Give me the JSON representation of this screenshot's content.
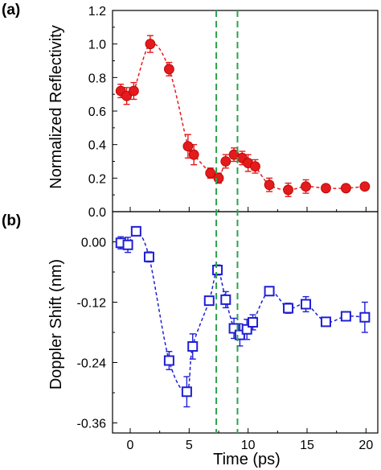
{
  "chart_data": [
    {
      "panel_label": "(a)",
      "type": "line",
      "xlabel": "",
      "ylabel": "Normalized Reflectivity",
      "xlim": [
        -1.5,
        21
      ],
      "ylim": [
        0.0,
        1.2
      ],
      "yticks": [
        "0.0",
        "0.2",
        "0.4",
        "0.6",
        "0.8",
        "1.0",
        "1.2"
      ],
      "marker": "filled-circle",
      "color": "#e41a1c",
      "series": [
        {
          "x": [
            -0.8,
            -0.3,
            0.3,
            1.7,
            3.3,
            4.9,
            5.4,
            6.8,
            7.5,
            8.1,
            8.8,
            9.5,
            10.0,
            10.6,
            11.8,
            13.4,
            14.9,
            16.6,
            18.3,
            19.9
          ],
          "y": [
            0.72,
            0.69,
            0.72,
            1.0,
            0.85,
            0.39,
            0.34,
            0.23,
            0.2,
            0.3,
            0.34,
            0.32,
            0.29,
            0.27,
            0.16,
            0.13,
            0.15,
            0.14,
            0.14,
            0.15
          ],
          "err": [
            0.04,
            0.05,
            0.05,
            0.05,
            0.04,
            0.07,
            0.06,
            0.03,
            0.03,
            0.04,
            0.04,
            0.04,
            0.05,
            0.04,
            0.04,
            0.04,
            0.04,
            0.01,
            0.01,
            0.01
          ]
        }
      ]
    },
    {
      "panel_label": "(b)",
      "type": "line",
      "xlabel": "Time (ps)",
      "ylabel": "Doppler Shift (nm)",
      "xlim": [
        -1.5,
        21
      ],
      "ylim": [
        -0.38,
        0.06
      ],
      "yticks": [
        "0.00",
        "-0.12",
        "-0.24",
        "-0.36"
      ],
      "ytick_values": [
        0.0,
        -0.12,
        -0.24,
        -0.36
      ],
      "xticks": [
        "0",
        "5",
        "10",
        "15",
        "20"
      ],
      "xtick_values": [
        0,
        5,
        10,
        15,
        20
      ],
      "marker": "open-square",
      "color": "#1f1fd6",
      "series": [
        {
          "x": [
            -0.8,
            -0.2,
            0.5,
            1.6,
            3.3,
            4.8,
            5.3,
            6.7,
            7.4,
            8.1,
            8.8,
            9.3,
            9.9,
            10.4,
            11.8,
            13.4,
            14.9,
            16.6,
            18.3,
            19.9
          ],
          "y": [
            -0.002,
            -0.006,
            0.021,
            -0.03,
            -0.236,
            -0.298,
            -0.208,
            -0.117,
            -0.056,
            -0.115,
            -0.172,
            -0.185,
            -0.174,
            -0.16,
            -0.098,
            -0.132,
            -0.124,
            -0.159,
            -0.148,
            -0.15
          ],
          "err": [
            0.012,
            0.015,
            0.008,
            0.01,
            0.018,
            0.03,
            0.025,
            0.008,
            0.01,
            0.016,
            0.02,
            0.022,
            0.02,
            0.015,
            0.008,
            0.01,
            0.015,
            0.008,
            0.008,
            0.03
          ]
        }
      ]
    }
  ],
  "markers": {
    "vertical_lines_x": [
      7.3,
      9.1
    ],
    "vertical_line_color": "#2ca24d"
  }
}
